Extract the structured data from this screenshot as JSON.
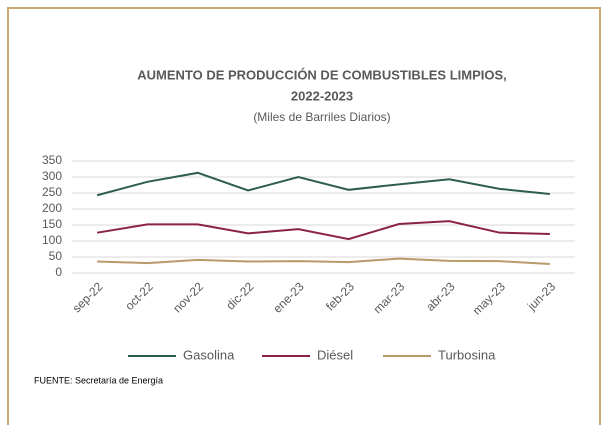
{
  "chart_data": {
    "type": "line",
    "title": [
      "AUMENTO DE PRODUCCIÓN DE COMBUSTIBLES LIMPIOS,",
      "2022-2023"
    ],
    "subtitle": "(Miles de Barriles Diarios)",
    "categories": [
      "sep-22",
      "oct-22",
      "nov-22",
      "dic-22",
      "ene-23",
      "feb-23",
      "mar-23",
      "abr-23",
      "may-23",
      "jun-23"
    ],
    "series": [
      {
        "name": "Gasolina",
        "color": "#2e5e4e",
        "values": [
          243,
          285,
          313,
          258,
          300,
          260,
          277,
          293,
          263,
          247
        ]
      },
      {
        "name": "Diésel",
        "color": "#8b2346",
        "values": [
          126,
          152,
          152,
          124,
          137,
          106,
          153,
          162,
          126,
          122
        ]
      },
      {
        "name": "Turbosina",
        "color": "#b89a6a",
        "values": [
          36,
          31,
          41,
          36,
          37,
          34,
          45,
          38,
          37,
          28
        ]
      }
    ],
    "ylim": [
      0,
      350
    ],
    "yticks": [
      0,
      50,
      100,
      150,
      200,
      250,
      300,
      350
    ],
    "grid": true,
    "legend": "bottom",
    "source": "FUENTE: Secretaría de Energía"
  }
}
